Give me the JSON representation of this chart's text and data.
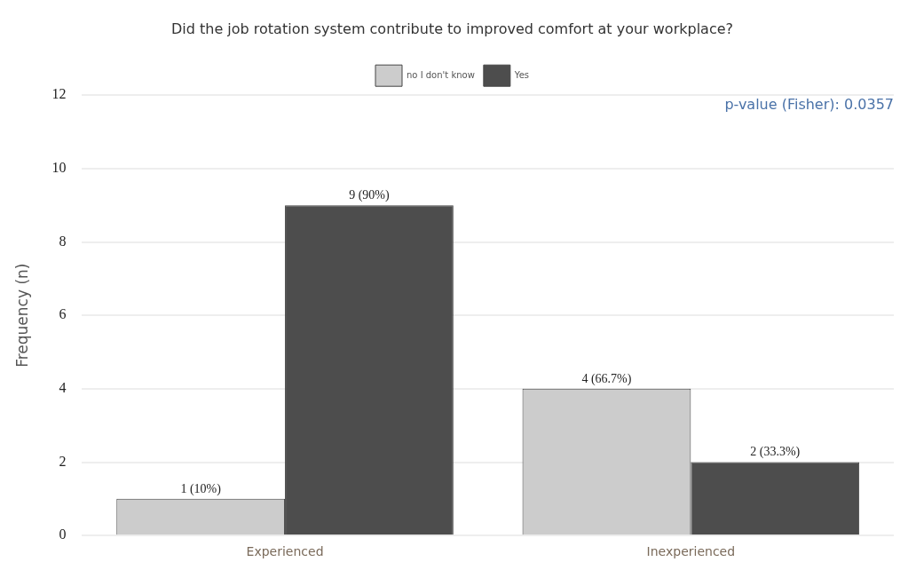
{
  "chart_data": {
    "type": "bar",
    "title": "Did the job rotation system contribute to improved comfort at your workplace?",
    "ylabel": "Frequency (n)",
    "categories": [
      "Experienced",
      "Inexperienced"
    ],
    "series": [
      {
        "name": "no I don't know",
        "color": "#cccccc",
        "values": [
          1,
          4
        ],
        "value_labels": [
          "1 (10%)",
          "4 (66.7%)"
        ]
      },
      {
        "name": "Yes",
        "color": "#4d4d4d",
        "values": [
          9,
          2
        ],
        "value_labels": [
          "9 (90%)",
          "2 (33.3%)"
        ]
      }
    ],
    "ylim": [
      0,
      12
    ],
    "yticks": [
      0,
      2,
      4,
      6,
      8,
      10,
      12
    ],
    "grid": "y",
    "legend": "top",
    "annotations": [
      "p-value (Fisher): 0.0357"
    ]
  }
}
